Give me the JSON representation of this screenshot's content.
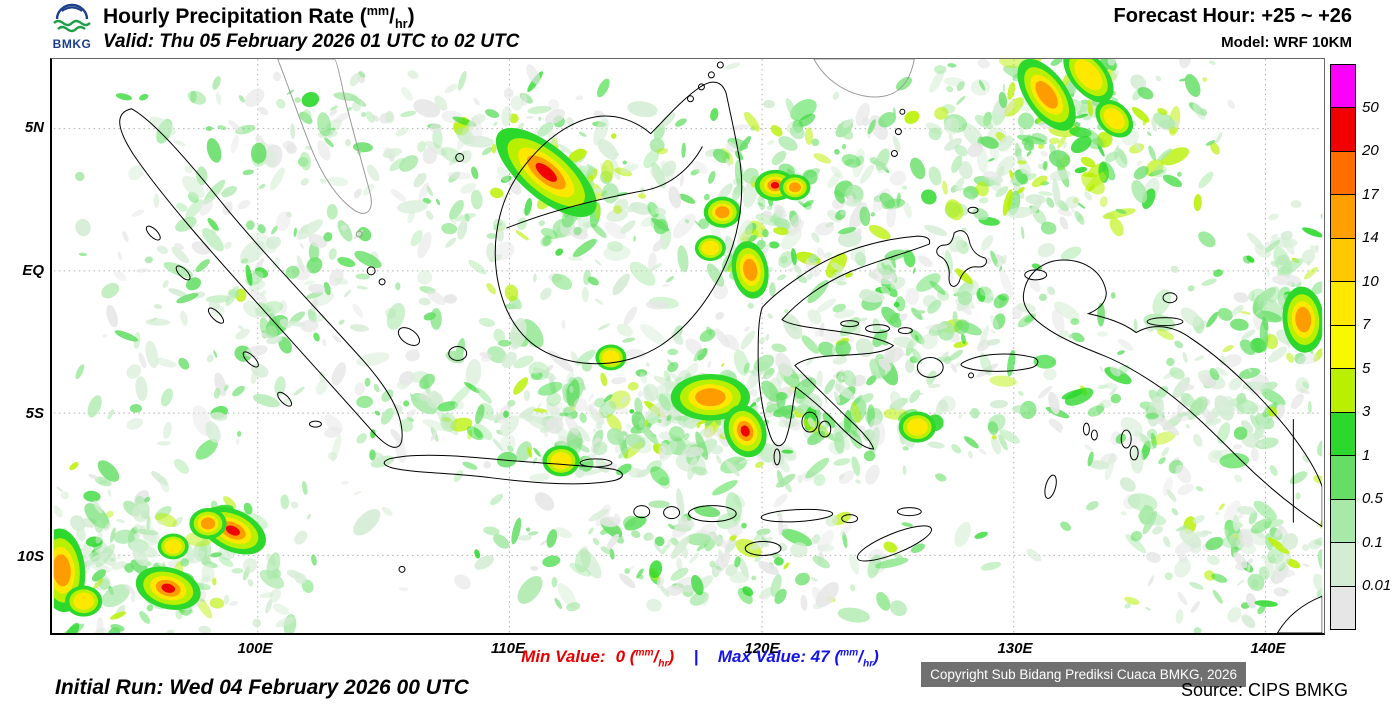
{
  "header": {
    "logo_text": "BMKG",
    "title": "Hourly Precipitation Rate",
    "valid": "Valid: Thu 05 February 2026 01 UTC to 02 UTC",
    "forecast_hour": "Forecast Hour: +25 ~ +26",
    "model": "Model: WRF 10KM"
  },
  "units": {
    "open": "(",
    "sup": "mm",
    "divider": "/",
    "sub": "hr",
    "close": ")"
  },
  "map": {
    "lat_labels": [
      "5N",
      "EQ",
      "5S",
      "10S"
    ],
    "lon_labels": [
      "100E",
      "110E",
      "120E",
      "130E",
      "140E"
    ],
    "copyright": "Copyright Sub Bidang Prediksi Cuaca BMKG, 2026"
  },
  "legend": {
    "labels": [
      "50",
      "20",
      "17",
      "14",
      "10",
      "7",
      "5",
      "3",
      "1",
      "0.5",
      "0.1",
      "0.01"
    ],
    "colors": [
      "#FB00FB",
      "#F00000",
      "#FF6F00",
      "#FFA000",
      "#FFC800",
      "#FFE800",
      "#F8F800",
      "#B8F000",
      "#2BD82B",
      "#66DE66",
      "#A8E8A8",
      "#D4ECD4",
      "#E6E6E6"
    ]
  },
  "stats": {
    "min_label": "Min Value:",
    "min_value": "0",
    "separator": "|",
    "max_label": "Max Value:",
    "max_value": "47",
    "min_color": "#e80000",
    "max_color": "#1414e8"
  },
  "footer": {
    "initial_run": "Initial Run: Wed 04 February 2026 00 UTC",
    "source": "Source: CIPS BMKG"
  }
}
